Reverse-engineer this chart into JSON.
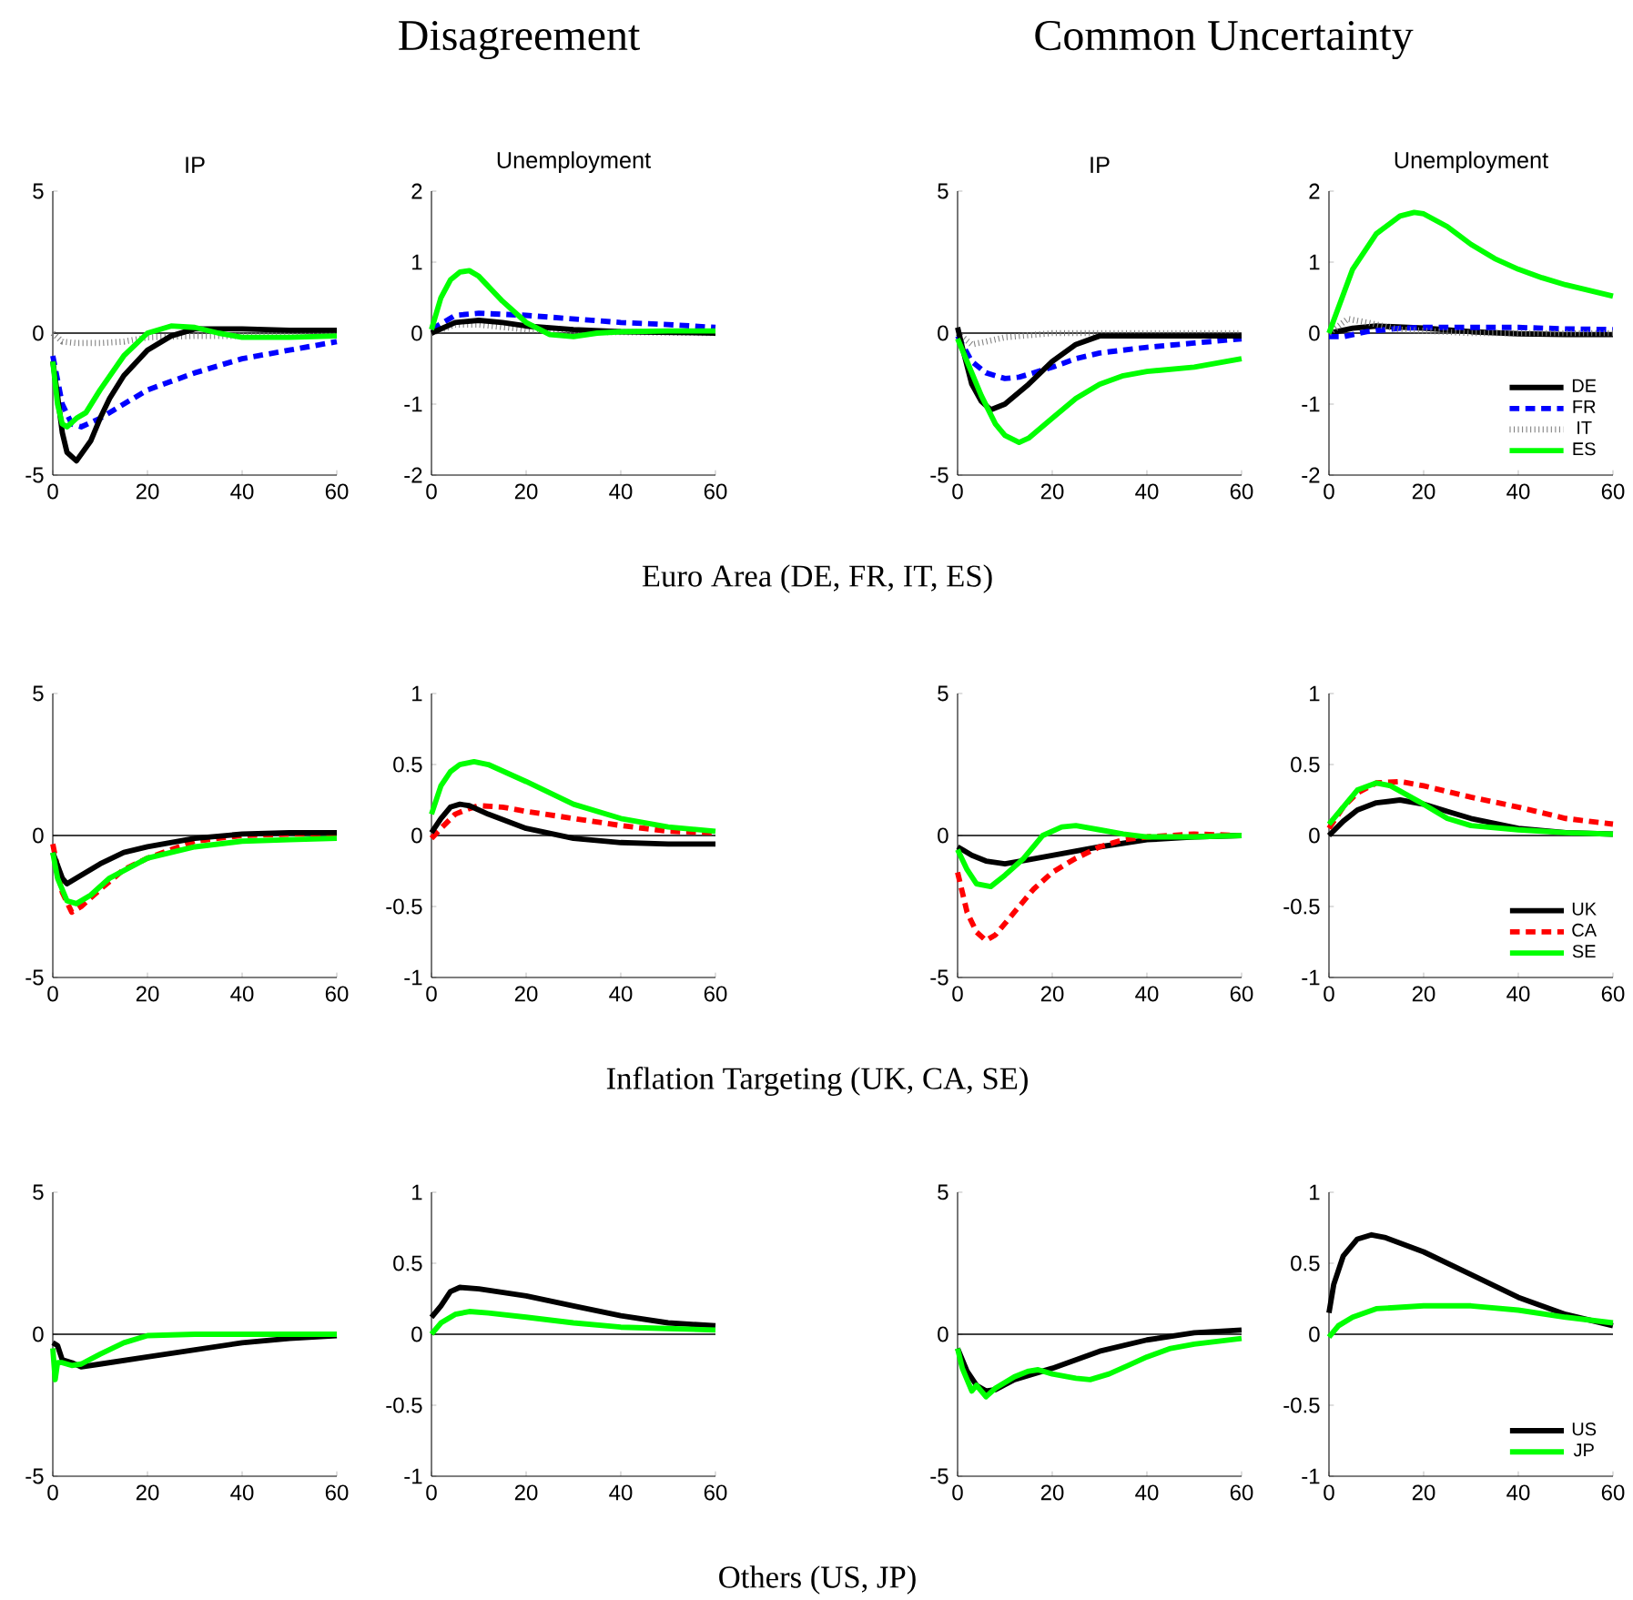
{
  "chart_data": [
    {
      "type": "line",
      "title": "IP",
      "annotations": [
        "Disagreement"
      ],
      "xlim": [
        0,
        60
      ],
      "xticks": [
        0,
        20,
        40,
        60
      ],
      "ylim": [
        -5,
        5
      ],
      "yticks": [
        -5,
        0,
        5
      ],
      "ref_lines": [
        {
          "axis": "y",
          "value": 0
        }
      ],
      "series": [
        {
          "color": "#808080",
          "line_style": "dotted",
          "x": [
            0,
            2,
            5,
            10,
            15,
            20,
            30,
            40,
            60
          ],
          "values": [
            0,
            -0.3,
            -0.35,
            -0.35,
            -0.3,
            -0.15,
            -0.1,
            -0.1,
            -0.05
          ]
        },
        {
          "color": "#0000ff",
          "line_style": "dashed",
          "x": [
            0,
            2,
            4,
            6,
            10,
            15,
            20,
            25,
            30,
            40,
            50,
            60
          ],
          "values": [
            -0.8,
            -2.5,
            -3.2,
            -3.3,
            -3.0,
            -2.5,
            -2.0,
            -1.7,
            -1.4,
            -0.9,
            -0.6,
            -0.3
          ]
        },
        {
          "color": "#000000",
          "line_style": "solid",
          "x": [
            0,
            1,
            2,
            3,
            5,
            8,
            10,
            12,
            15,
            20,
            25,
            30,
            40,
            50,
            60
          ],
          "values": [
            -1.0,
            -2.2,
            -3.5,
            -4.2,
            -4.5,
            -3.8,
            -3.0,
            -2.3,
            -1.5,
            -0.6,
            -0.1,
            0.15,
            0.15,
            0.1,
            0.1
          ]
        },
        {
          "color": "#00ff00",
          "line_style": "solid",
          "x": [
            0,
            1,
            2,
            3,
            5,
            7,
            10,
            15,
            20,
            25,
            30,
            35,
            40,
            50,
            60
          ],
          "values": [
            -1.0,
            -2.5,
            -3.2,
            -3.3,
            -3.0,
            -2.8,
            -2.0,
            -0.8,
            0,
            0.25,
            0.2,
            0,
            -0.15,
            -0.15,
            -0.1
          ]
        }
      ]
    },
    {
      "type": "line",
      "title": "Unemployment",
      "annotations": [
        "Euro Area (DE, FR, IT, ES)"
      ],
      "xlim": [
        0,
        60
      ],
      "xticks": [
        0,
        20,
        40,
        60
      ],
      "ylim": [
        -2,
        2
      ],
      "yticks": [
        -2,
        -1,
        0,
        1,
        2
      ],
      "ref_lines": [
        {
          "axis": "y",
          "value": 0
        }
      ],
      "series": [
        {
          "color": "#808080",
          "line_style": "dotted",
          "x": [
            0,
            5,
            10,
            20,
            30,
            60
          ],
          "values": [
            0,
            0.12,
            0.12,
            0.05,
            0.02,
            0
          ]
        },
        {
          "color": "#0000ff",
          "line_style": "dashed",
          "x": [
            0,
            5,
            10,
            20,
            30,
            40,
            50,
            60
          ],
          "values": [
            0.05,
            0.25,
            0.28,
            0.25,
            0.2,
            0.15,
            0.12,
            0.08
          ]
        },
        {
          "color": "#000000",
          "line_style": "solid",
          "x": [
            0,
            5,
            10,
            15,
            20,
            30,
            40,
            60
          ],
          "values": [
            0,
            0.15,
            0.18,
            0.15,
            0.1,
            0.05,
            0.02,
            0
          ]
        },
        {
          "color": "#00ff00",
          "line_style": "solid",
          "x": [
            0,
            2,
            4,
            6,
            8,
            10,
            15,
            20,
            25,
            30,
            35,
            40,
            50,
            60
          ],
          "values": [
            0.05,
            0.5,
            0.75,
            0.86,
            0.88,
            0.8,
            0.45,
            0.15,
            -0.02,
            -0.05,
            0,
            0.02,
            0.03,
            0.03
          ]
        }
      ]
    },
    {
      "type": "line",
      "title": "IP",
      "annotations": [
        "Common Uncertainty"
      ],
      "xlim": [
        0,
        60
      ],
      "xticks": [
        0,
        20,
        40,
        60
      ],
      "ylim": [
        -5,
        5
      ],
      "yticks": [
        -5,
        0,
        5
      ],
      "ref_lines": [
        {
          "axis": "y",
          "value": 0
        }
      ],
      "series": [
        {
          "color": "#808080",
          "line_style": "dotted",
          "x": [
            0,
            3,
            6,
            10,
            20,
            60
          ],
          "values": [
            0,
            -0.4,
            -0.3,
            -0.15,
            0,
            0
          ]
        },
        {
          "color": "#0000ff",
          "line_style": "dashed",
          "x": [
            0,
            3,
            6,
            10,
            13,
            20,
            25,
            30,
            40,
            50,
            60
          ],
          "values": [
            -0.1,
            -1.0,
            -1.4,
            -1.6,
            -1.55,
            -1.2,
            -0.9,
            -0.7,
            -0.5,
            -0.35,
            -0.2
          ]
        },
        {
          "color": "#000000",
          "line_style": "solid",
          "x": [
            0,
            1,
            3,
            5,
            7,
            10,
            15,
            20,
            25,
            30,
            40,
            60
          ],
          "values": [
            0.2,
            -0.5,
            -1.8,
            -2.4,
            -2.7,
            -2.5,
            -1.8,
            -1.0,
            -0.4,
            -0.1,
            -0.1,
            -0.1
          ]
        },
        {
          "color": "#00ff00",
          "line_style": "solid",
          "x": [
            0,
            2,
            5,
            8,
            10,
            13,
            15,
            20,
            25,
            30,
            35,
            40,
            50,
            60
          ],
          "values": [
            -0.2,
            -1.0,
            -2.2,
            -3.2,
            -3.6,
            -3.85,
            -3.7,
            -3.0,
            -2.3,
            -1.8,
            -1.5,
            -1.35,
            -1.2,
            -0.9
          ]
        }
      ]
    },
    {
      "type": "line",
      "title": "Unemployment",
      "legend": "bottom right",
      "xlim": [
        0,
        60
      ],
      "xticks": [
        0,
        20,
        40,
        60
      ],
      "ylim": [
        -2,
        2
      ],
      "yticks": [
        -2,
        -1,
        0,
        1,
        2
      ],
      "ref_lines": [
        {
          "axis": "y",
          "value": 0
        }
      ],
      "series": [
        {
          "name": "DE",
          "color": "#000000",
          "line_style": "solid",
          "x": [
            0,
            5,
            10,
            20,
            30,
            40,
            50,
            60
          ],
          "values": [
            0,
            0.07,
            0.1,
            0.07,
            0.02,
            -0.01,
            -0.02,
            -0.02
          ]
        },
        {
          "name": "FR",
          "color": "#0000ff",
          "line_style": "dashed",
          "x": [
            0,
            3,
            8,
            15,
            20,
            30,
            40,
            50,
            60
          ],
          "values": [
            -0.05,
            -0.05,
            0.02,
            0.07,
            0.08,
            0.08,
            0.08,
            0.06,
            0.05
          ]
        },
        {
          "name": "IT",
          "color": "#808080",
          "line_style": "dotted",
          "x": [
            0,
            4,
            8,
            15,
            30,
            60
          ],
          "values": [
            0,
            0.2,
            0.15,
            0.05,
            0,
            0
          ]
        },
        {
          "name": "ES",
          "color": "#00ff00",
          "line_style": "solid",
          "x": [
            0,
            5,
            10,
            15,
            18,
            20,
            25,
            30,
            35,
            40,
            45,
            50,
            55,
            60
          ],
          "values": [
            0,
            0.9,
            1.4,
            1.65,
            1.7,
            1.68,
            1.5,
            1.25,
            1.05,
            0.9,
            0.78,
            0.68,
            0.6,
            0.52
          ]
        }
      ]
    },
    {
      "type": "line",
      "xlim": [
        0,
        60
      ],
      "xticks": [
        0,
        20,
        40,
        60
      ],
      "ylim": [
        -5,
        5
      ],
      "yticks": [
        -5,
        0,
        5
      ],
      "ref_lines": [
        {
          "axis": "y",
          "value": 0
        }
      ],
      "series": [
        {
          "color": "#ff0000",
          "line_style": "dashed",
          "x": [
            0,
            2,
            4,
            6,
            10,
            15,
            20,
            30,
            40,
            50,
            60
          ],
          "values": [
            -0.3,
            -2.0,
            -2.7,
            -2.5,
            -1.9,
            -1.2,
            -0.8,
            -0.2,
            0,
            0.05,
            0.05
          ]
        },
        {
          "color": "#000000",
          "line_style": "solid",
          "x": [
            0,
            2,
            3,
            5,
            10,
            15,
            20,
            30,
            40,
            50,
            60
          ],
          "values": [
            -0.6,
            -1.5,
            -1.7,
            -1.5,
            -1.0,
            -0.6,
            -0.4,
            -0.1,
            0.05,
            0.1,
            0.1
          ]
        },
        {
          "color": "#00ff00",
          "line_style": "solid",
          "x": [
            0,
            1,
            3,
            5,
            8,
            12,
            20,
            30,
            40,
            50,
            60
          ],
          "values": [
            -0.6,
            -1.5,
            -2.3,
            -2.4,
            -2.1,
            -1.5,
            -0.8,
            -0.4,
            -0.2,
            -0.15,
            -0.1
          ]
        }
      ]
    },
    {
      "type": "line",
      "annotations": [
        "Inflation Targeting (UK, CA, SE)"
      ],
      "xlim": [
        0,
        60
      ],
      "xticks": [
        0,
        20,
        40,
        60
      ],
      "ylim": [
        -1,
        1
      ],
      "yticks": [
        -1,
        -0.5,
        0,
        0.5,
        1
      ],
      "ref_lines": [
        {
          "axis": "y",
          "value": 0
        }
      ],
      "series": [
        {
          "color": "#ff0000",
          "line_style": "dashed",
          "x": [
            0,
            2,
            5,
            8,
            10,
            15,
            20,
            30,
            40,
            50,
            60
          ],
          "values": [
            -0.02,
            0.05,
            0.15,
            0.19,
            0.21,
            0.2,
            0.17,
            0.12,
            0.07,
            0.03,
            0.02
          ]
        },
        {
          "color": "#000000",
          "line_style": "solid",
          "x": [
            0,
            2,
            4,
            6,
            8,
            12,
            20,
            30,
            40,
            50,
            60
          ],
          "values": [
            0.02,
            0.12,
            0.2,
            0.22,
            0.21,
            0.15,
            0.05,
            -0.02,
            -0.05,
            -0.06,
            -0.06
          ]
        },
        {
          "color": "#00ff00",
          "line_style": "solid",
          "x": [
            0,
            1,
            2,
            4,
            6,
            9,
            12,
            20,
            30,
            40,
            50,
            60
          ],
          "values": [
            0.15,
            0.25,
            0.35,
            0.45,
            0.5,
            0.52,
            0.5,
            0.38,
            0.22,
            0.12,
            0.06,
            0.03
          ]
        }
      ]
    },
    {
      "type": "line",
      "xlim": [
        0,
        60
      ],
      "xticks": [
        0,
        20,
        40,
        60
      ],
      "ylim": [
        -5,
        5
      ],
      "yticks": [
        -5,
        0,
        5
      ],
      "ref_lines": [
        {
          "axis": "y",
          "value": 0
        }
      ],
      "series": [
        {
          "color": "#000000",
          "line_style": "solid",
          "x": [
            0,
            1,
            3,
            6,
            10,
            15,
            20,
            25,
            30,
            40,
            50,
            60
          ],
          "values": [
            -0.4,
            -0.5,
            -0.7,
            -0.9,
            -1.0,
            -0.85,
            -0.7,
            -0.55,
            -0.4,
            -0.15,
            -0.05,
            0
          ]
        },
        {
          "color": "#ff0000",
          "line_style": "dashed",
          "x": [
            0,
            2,
            4,
            6,
            8,
            12,
            16,
            20,
            25,
            30,
            35,
            40,
            50,
            60
          ],
          "values": [
            -1.3,
            -2.7,
            -3.4,
            -3.7,
            -3.5,
            -2.7,
            -1.9,
            -1.3,
            -0.8,
            -0.4,
            -0.15,
            -0.05,
            0.05,
            0
          ]
        },
        {
          "color": "#00ff00",
          "line_style": "solid",
          "x": [
            0,
            2,
            4,
            7,
            10,
            14,
            18,
            22,
            25,
            30,
            35,
            40,
            50,
            60
          ],
          "values": [
            -0.5,
            -1.2,
            -1.7,
            -1.8,
            -1.4,
            -0.8,
            0,
            0.3,
            0.35,
            0.2,
            0.05,
            -0.05,
            -0.05,
            0
          ]
        }
      ]
    },
    {
      "type": "line",
      "legend": "bottom right",
      "xlim": [
        0,
        60
      ],
      "xticks": [
        0,
        20,
        40,
        60
      ],
      "ylim": [
        -1,
        1
      ],
      "yticks": [
        -1,
        -0.5,
        0,
        0.5,
        1
      ],
      "ref_lines": [
        {
          "axis": "y",
          "value": 0
        }
      ],
      "series": [
        {
          "name": "UK",
          "color": "#000000",
          "line_style": "solid",
          "x": [
            0,
            3,
            6,
            10,
            15,
            20,
            25,
            30,
            40,
            50,
            60
          ],
          "values": [
            0,
            0.1,
            0.18,
            0.23,
            0.25,
            0.22,
            0.17,
            0.12,
            0.05,
            0.02,
            0.01
          ]
        },
        {
          "name": "CA",
          "color": "#ff0000",
          "line_style": "dashed",
          "x": [
            0,
            3,
            6,
            10,
            15,
            20,
            30,
            40,
            50,
            60
          ],
          "values": [
            0.05,
            0.2,
            0.3,
            0.37,
            0.38,
            0.35,
            0.27,
            0.2,
            0.12,
            0.08
          ]
        },
        {
          "name": "SE",
          "color": "#00ff00",
          "line_style": "solid",
          "x": [
            0,
            3,
            6,
            10,
            13,
            20,
            25,
            30,
            40,
            50,
            60
          ],
          "values": [
            0.08,
            0.2,
            0.32,
            0.37,
            0.35,
            0.22,
            0.12,
            0.07,
            0.04,
            0.02,
            0.01
          ]
        }
      ]
    },
    {
      "type": "line",
      "xlim": [
        0,
        60
      ],
      "xticks": [
        0,
        20,
        40,
        60
      ],
      "ylim": [
        -5,
        5
      ],
      "yticks": [
        -5,
        0,
        5
      ],
      "ref_lines": [
        {
          "axis": "y",
          "value": 0
        }
      ],
      "series": [
        {
          "color": "#000000",
          "line_style": "solid",
          "x": [
            0,
            1,
            2,
            4,
            6,
            10,
            20,
            30,
            40,
            50,
            60
          ],
          "values": [
            -0.3,
            -0.4,
            -0.9,
            -1.0,
            -1.15,
            -1.05,
            -0.8,
            -0.55,
            -0.3,
            -0.15,
            -0.05
          ]
        },
        {
          "color": "#00ff00",
          "line_style": "solid",
          "x": [
            0,
            0.5,
            1,
            2,
            4,
            6,
            10,
            15,
            20,
            30,
            60
          ],
          "values": [
            -0.5,
            -1.6,
            -1.0,
            -1.0,
            -1.1,
            -1.05,
            -0.7,
            -0.3,
            -0.05,
            0,
            0
          ]
        }
      ]
    },
    {
      "type": "line",
      "annotations": [
        "Others (US, JP)"
      ],
      "xlim": [
        0,
        60
      ],
      "xticks": [
        0,
        20,
        40,
        60
      ],
      "ylim": [
        -1,
        1
      ],
      "yticks": [
        -1,
        -0.5,
        0,
        0.5,
        1
      ],
      "ref_lines": [
        {
          "axis": "y",
          "value": 0
        }
      ],
      "series": [
        {
          "color": "#000000",
          "line_style": "solid",
          "x": [
            0,
            2,
            4,
            6,
            10,
            20,
            30,
            40,
            50,
            60
          ],
          "values": [
            0.12,
            0.2,
            0.3,
            0.33,
            0.32,
            0.27,
            0.2,
            0.13,
            0.08,
            0.06
          ]
        },
        {
          "color": "#00ff00",
          "line_style": "solid",
          "x": [
            0,
            2,
            5,
            8,
            12,
            20,
            30,
            40,
            50,
            60
          ],
          "values": [
            0,
            0.08,
            0.14,
            0.16,
            0.15,
            0.12,
            0.08,
            0.05,
            0.04,
            0.03
          ]
        }
      ]
    },
    {
      "type": "line",
      "xlim": [
        0,
        60
      ],
      "xticks": [
        0,
        20,
        40,
        60
      ],
      "ylim": [
        -5,
        5
      ],
      "yticks": [
        -5,
        0,
        5
      ],
      "ref_lines": [
        {
          "axis": "y",
          "value": 0
        }
      ],
      "series": [
        {
          "color": "#000000",
          "line_style": "solid",
          "x": [
            0,
            2,
            4,
            6,
            8,
            12,
            20,
            30,
            40,
            50,
            60
          ],
          "values": [
            -0.5,
            -1.3,
            -1.8,
            -2.0,
            -1.95,
            -1.6,
            -1.2,
            -0.6,
            -0.2,
            0.05,
            0.15
          ]
        },
        {
          "color": "#00ff00",
          "line_style": "solid",
          "x": [
            0,
            1,
            3,
            4,
            6,
            8,
            12,
            15,
            17,
            20,
            25,
            28,
            32,
            36,
            40,
            45,
            50,
            60
          ],
          "values": [
            -0.5,
            -1.2,
            -2.0,
            -1.8,
            -2.2,
            -1.9,
            -1.5,
            -1.3,
            -1.25,
            -1.4,
            -1.55,
            -1.6,
            -1.4,
            -1.1,
            -0.8,
            -0.5,
            -0.35,
            -0.15
          ]
        }
      ]
    },
    {
      "type": "line",
      "legend": "bottom right",
      "xlim": [
        0,
        60
      ],
      "xticks": [
        0,
        20,
        40,
        60
      ],
      "ylim": [
        -1,
        1
      ],
      "yticks": [
        -1,
        -0.5,
        0,
        0.5,
        1
      ],
      "ref_lines": [
        {
          "axis": "y",
          "value": 0
        }
      ],
      "series": [
        {
          "name": "US",
          "color": "#000000",
          "line_style": "solid",
          "x": [
            0,
            1,
            3,
            6,
            9,
            12,
            20,
            30,
            40,
            50,
            60
          ],
          "values": [
            0.15,
            0.35,
            0.55,
            0.67,
            0.7,
            0.68,
            0.58,
            0.42,
            0.26,
            0.14,
            0.06
          ]
        },
        {
          "name": "JP",
          "color": "#00ff00",
          "line_style": "solid",
          "x": [
            0,
            2,
            5,
            10,
            20,
            30,
            40,
            50,
            60
          ],
          "values": [
            -0.02,
            0.06,
            0.12,
            0.18,
            0.2,
            0.2,
            0.17,
            0.12,
            0.08
          ]
        }
      ]
    }
  ]
}
